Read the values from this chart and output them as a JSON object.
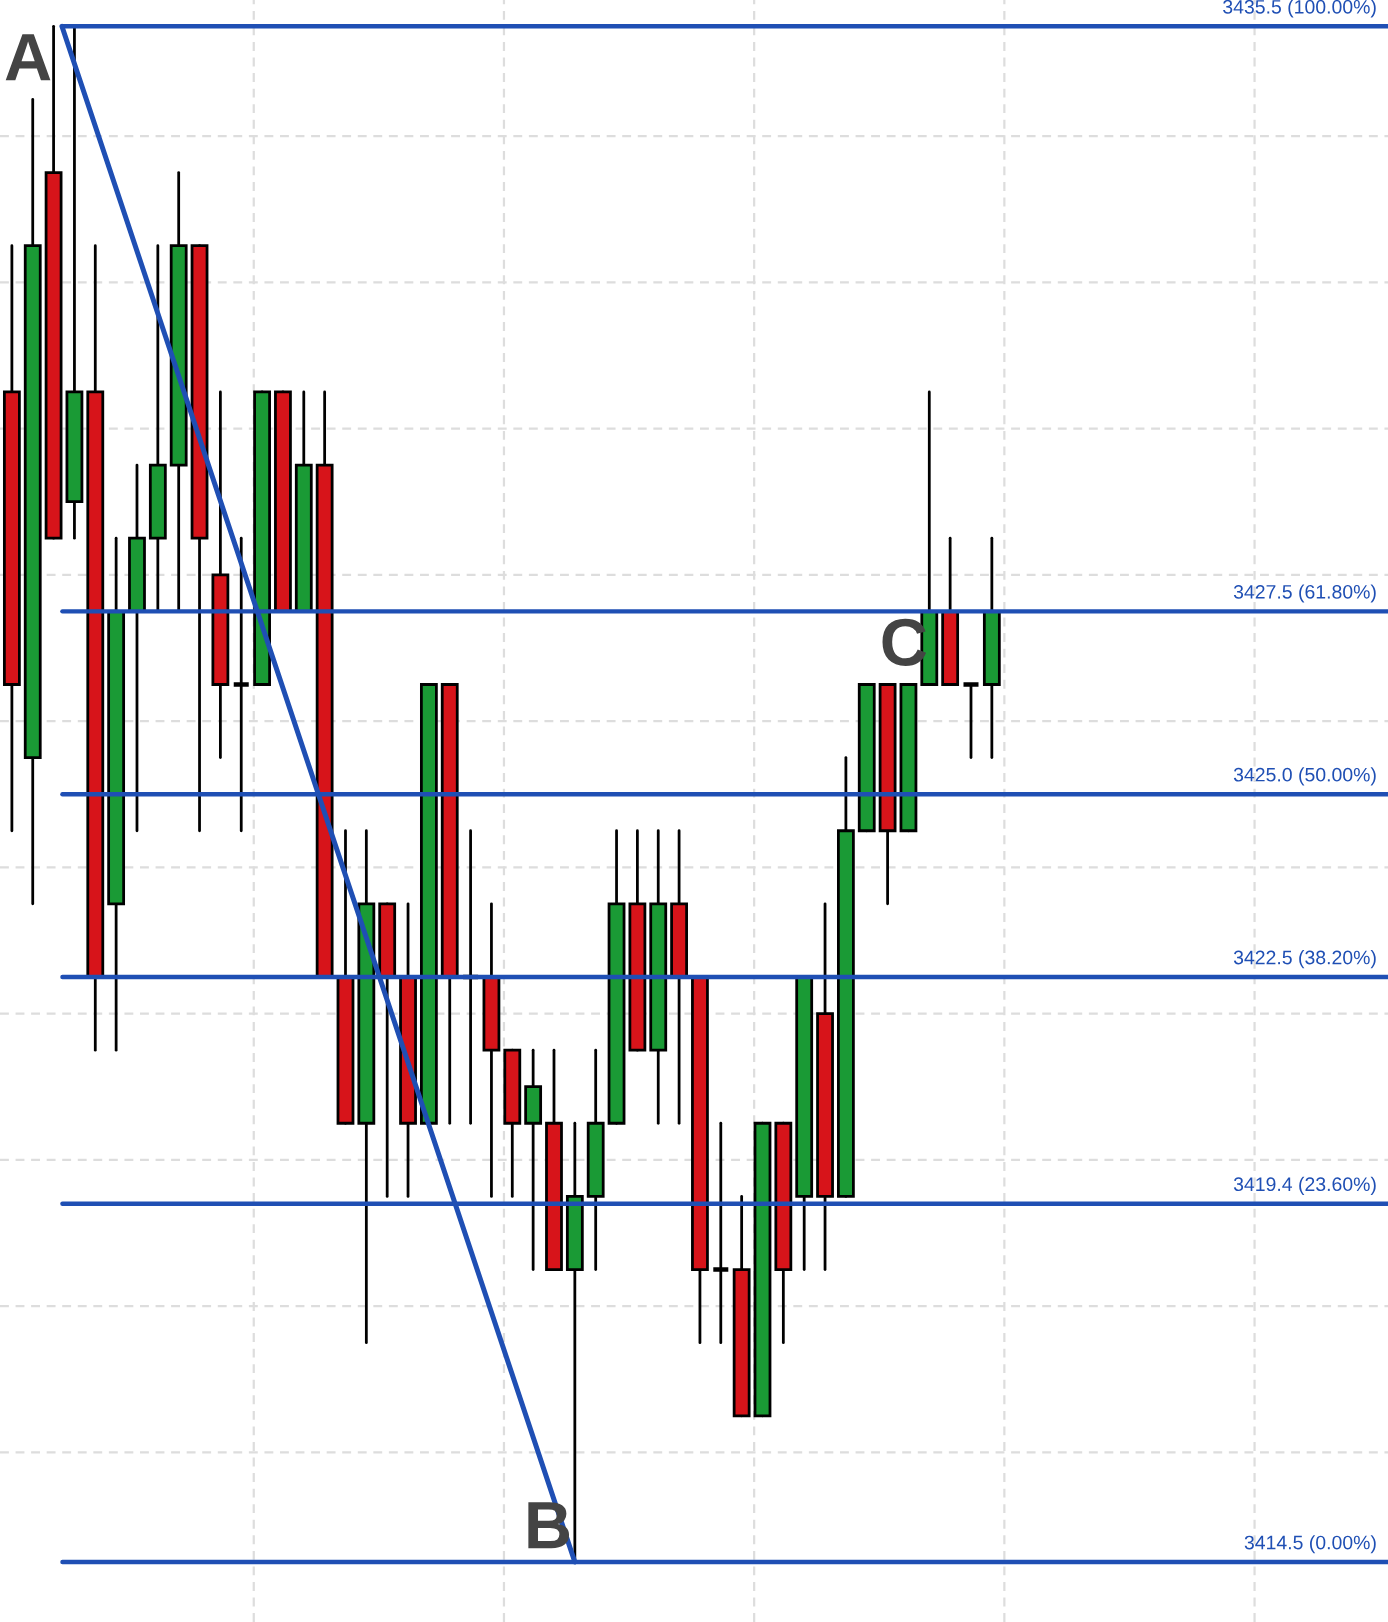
{
  "chart_data": {
    "type": "candlestick",
    "categories": [
      null,
      null,
      null,
      null,
      null,
      null,
      null,
      null,
      null,
      null,
      null,
      null,
      null,
      null,
      null,
      null,
      null,
      null,
      null,
      null,
      null,
      null,
      null,
      null,
      null,
      null,
      null,
      null,
      null,
      null,
      null,
      null,
      null,
      null,
      null,
      null,
      null,
      null,
      null,
      null,
      null,
      null,
      null,
      null,
      null,
      null,
      null,
      null
    ],
    "ohlc": [
      [
        3430.5,
        3432.5,
        3424.5,
        3426.5
      ],
      [
        3425.5,
        3434.5,
        3423.5,
        3432.5
      ],
      [
        3433.5,
        3435.5,
        3428.5,
        3428.5
      ],
      [
        3429.0,
        3435.5,
        3428.5,
        3430.5
      ],
      [
        3430.5,
        3432.5,
        3421.5,
        3422.5
      ],
      [
        3423.5,
        3428.5,
        3421.5,
        3427.5
      ],
      [
        3427.5,
        3429.5,
        3424.5,
        3428.5
      ],
      [
        3428.5,
        3432.5,
        3427.5,
        3429.5
      ],
      [
        3429.5,
        3433.5,
        3427.5,
        3432.5
      ],
      [
        3432.5,
        3432.5,
        3424.5,
        3428.5
      ],
      [
        3428.0,
        3430.5,
        3425.5,
        3426.5
      ],
      [
        3426.5,
        3428.5,
        3424.5,
        3426.5
      ],
      [
        3426.5,
        3430.5,
        3426.5,
        3430.5
      ],
      [
        3430.5,
        3430.5,
        3427.5,
        3427.5
      ],
      [
        3427.5,
        3430.5,
        3427.5,
        3429.5
      ],
      [
        3429.5,
        3430.5,
        3422.5,
        3422.5
      ],
      [
        3422.5,
        3424.5,
        3420.5,
        3420.5
      ],
      [
        3420.5,
        3424.5,
        3417.5,
        3423.5
      ],
      [
        3423.5,
        3423.5,
        3419.5,
        3422.5
      ],
      [
        3422.5,
        3423.5,
        3419.5,
        3420.5
      ],
      [
        3420.5,
        3426.5,
        3420.5,
        3426.5
      ],
      [
        3426.5,
        3426.5,
        3420.5,
        3422.5
      ],
      [
        3422.5,
        3424.5,
        3420.5,
        3422.5
      ],
      [
        3422.5,
        3423.5,
        3419.5,
        3421.5
      ],
      [
        3421.5,
        3421.5,
        3419.5,
        3420.5
      ],
      [
        3420.5,
        3421.5,
        3418.5,
        3421.0
      ],
      [
        3420.5,
        3421.5,
        3418.5,
        3418.5
      ],
      [
        3418.5,
        3420.5,
        3414.5,
        3419.5
      ],
      [
        3419.5,
        3421.5,
        3418.5,
        3420.5
      ],
      [
        3420.5,
        3424.5,
        3420.5,
        3423.5
      ],
      [
        3423.5,
        3424.5,
        3421.5,
        3421.5
      ],
      [
        3421.5,
        3424.5,
        3420.5,
        3423.5
      ],
      [
        3423.5,
        3424.5,
        3420.5,
        3422.5
      ],
      [
        3422.5,
        3422.5,
        3417.5,
        3418.5
      ],
      [
        3418.5,
        3420.5,
        3417.5,
        3418.5
      ],
      [
        3418.5,
        3419.5,
        3416.5,
        3416.5
      ],
      [
        3416.5,
        3420.5,
        3416.5,
        3420.5
      ],
      [
        3420.5,
        3420.5,
        3417.5,
        3418.5
      ],
      [
        3419.5,
        3422.5,
        3418.5,
        3422.5
      ],
      [
        3422.0,
        3423.5,
        3418.5,
        3419.5
      ],
      [
        3419.5,
        3425.5,
        3419.5,
        3424.5
      ],
      [
        3424.5,
        3426.5,
        3424.5,
        3426.5
      ],
      [
        3426.5,
        3426.5,
        3423.5,
        3424.5
      ],
      [
        3424.5,
        3426.5,
        3424.5,
        3426.5
      ],
      [
        3426.5,
        3430.5,
        3426.5,
        3427.5
      ],
      [
        3427.5,
        3428.5,
        3426.5,
        3426.5
      ],
      [
        3426.5,
        3426.5,
        3425.5,
        3426.5
      ],
      [
        3426.5,
        3428.5,
        3425.5,
        3427.5
      ]
    ],
    "ylim": [
      3413.68,
      3435.86
    ],
    "yticks": [
      {
        "value": 3416,
        "label": null
      },
      {
        "value": 3418,
        "label": null
      },
      {
        "value": 3420,
        "label": null
      },
      {
        "value": 3422,
        "label": null
      },
      {
        "value": 3424,
        "label": null
      },
      {
        "value": 3426,
        "label": null
      },
      {
        "value": 3428,
        "label": null
      },
      {
        "value": 3430,
        "label": null
      },
      {
        "value": 3432,
        "label": null
      },
      {
        "value": 3434,
        "label": null
      }
    ],
    "grid": true,
    "ref_lines": [
      {
        "axis": "y",
        "value": 3435.5,
        "label": "3435.5 (100.00%)",
        "color": "#1f4fb4"
      },
      {
        "axis": "y",
        "value": 3427.5,
        "label": "3427.5 (61.80%)",
        "color": "#1f4fb4"
      },
      {
        "axis": "y",
        "value": 3425.0,
        "label": "3425.0 (50.00%)",
        "color": "#1f4fb4"
      },
      {
        "axis": "y",
        "value": 3422.5,
        "label": "3422.5 (38.20%)",
        "color": "#1f4fb4"
      },
      {
        "axis": "y",
        "value": 3419.4,
        "label": "3419.4 (23.60%)",
        "color": "#1f4fb4"
      },
      {
        "axis": "y",
        "value": 3414.5,
        "label": "3414.5 (0.00%)",
        "color": "#1f4fb4"
      }
    ],
    "annotations": [
      "A",
      "B",
      "C"
    ]
  }
}
